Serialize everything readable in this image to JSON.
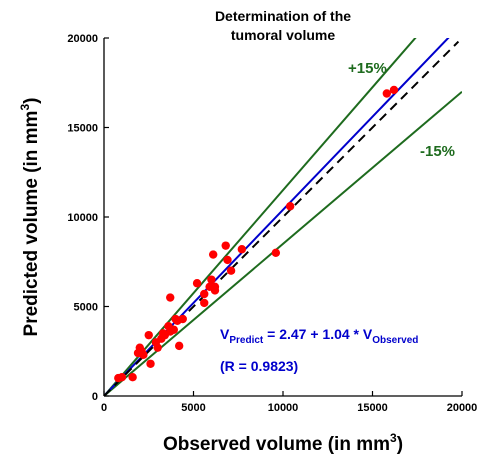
{
  "chart_data": {
    "type": "scatter",
    "title": [
      "Determination of the",
      "tumoral volume"
    ],
    "xlabel": {
      "text": "Observed volume (in mm",
      "sup": "3",
      "end": ")"
    },
    "ylabel": {
      "text": "Predicted volume (in mm",
      "sup": "3",
      "end": ")"
    },
    "xlim": [
      0,
      20000
    ],
    "ylim": [
      0,
      20000
    ],
    "xticks": [
      0,
      5000,
      10000,
      15000,
      20000
    ],
    "yticks": [
      0,
      5000,
      10000,
      15000,
      20000
    ],
    "xtick_labels": [
      "0",
      "5000",
      "10000",
      "15000",
      "20000"
    ],
    "ytick_labels": [
      "0",
      "5000",
      "10000",
      "15000",
      "20000"
    ],
    "grid": false,
    "colors": {
      "points": "#ff0000",
      "regression": "#0000cc",
      "identity": "#000000",
      "bands": "#1e6b1e"
    },
    "band_labels": {
      "upper": "+15%",
      "lower": "-15%"
    },
    "bands": {
      "upper_slope": 1.15,
      "lower_slope": 0.85
    },
    "regression": {
      "intercept": 2.47,
      "slope": 1.04
    },
    "equation": {
      "v": "V",
      "sub1": "Predict",
      "middle": " = 2.47 + 1.04 * V",
      "sub2": "Observed",
      "r_text": "(R = 0.9823)"
    },
    "points": [
      [
        800,
        1000
      ],
      [
        1000,
        1050
      ],
      [
        1600,
        1050
      ],
      [
        1900,
        2400
      ],
      [
        2000,
        2700
      ],
      [
        2100,
        2500
      ],
      [
        2200,
        2300
      ],
      [
        2500,
        3400
      ],
      [
        2600,
        1800
      ],
      [
        2900,
        3000
      ],
      [
        3000,
        2700
      ],
      [
        3200,
        3200
      ],
      [
        3300,
        3500
      ],
      [
        3400,
        3400
      ],
      [
        3600,
        3900
      ],
      [
        3700,
        5500
      ],
      [
        3700,
        3600
      ],
      [
        3900,
        3700
      ],
      [
        4000,
        4300
      ],
      [
        4100,
        4200
      ],
      [
        4200,
        2800
      ],
      [
        4400,
        4300
      ],
      [
        5200,
        6300
      ],
      [
        5600,
        5700
      ],
      [
        5600,
        5200
      ],
      [
        5900,
        6100
      ],
      [
        6000,
        6500
      ],
      [
        6100,
        7900
      ],
      [
        6200,
        6100
      ],
      [
        6200,
        5900
      ],
      [
        6800,
        8400
      ],
      [
        6900,
        7600
      ],
      [
        7100,
        7000
      ],
      [
        7700,
        8200
      ],
      [
        9600,
        8000
      ],
      [
        10400,
        10600
      ],
      [
        15800,
        16900
      ],
      [
        16200,
        17100
      ]
    ]
  }
}
